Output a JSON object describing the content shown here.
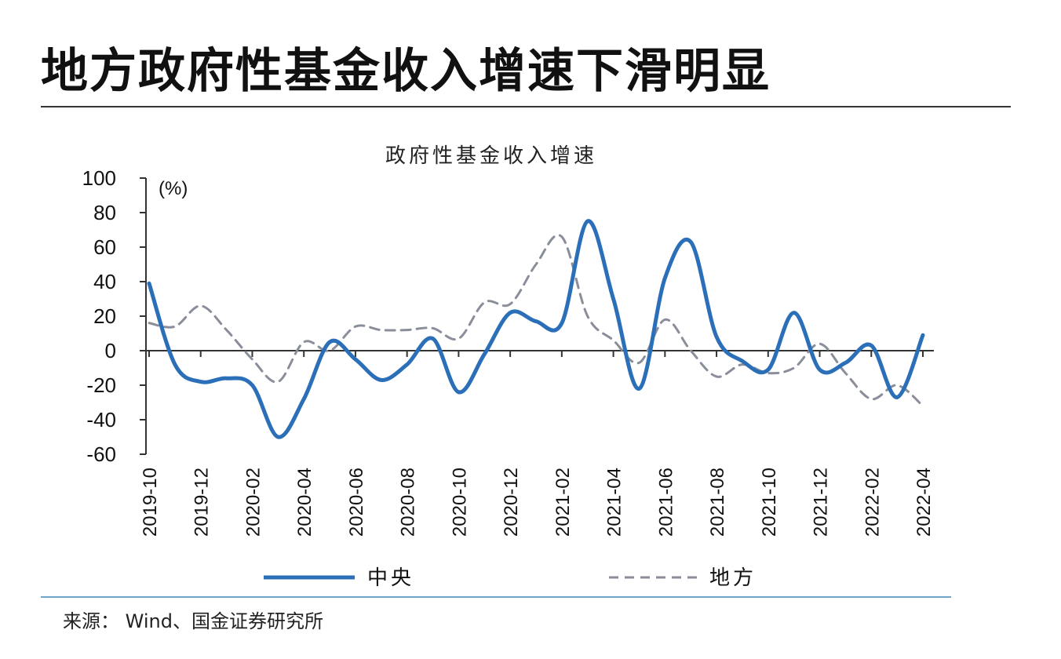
{
  "headline": "地方政府性基金收入增速下滑明显",
  "source": "来源： Wind、国金证券研究所",
  "chart_data": {
    "type": "line",
    "title": "政府性基金收入增速",
    "ylabel": "(%)",
    "xlabel": "",
    "ylim": [
      -60,
      100
    ],
    "yticks": [
      "100",
      "80",
      "60",
      "40",
      "20",
      "0",
      "-20",
      "-40",
      "-60"
    ],
    "categories": [
      "2019-10",
      "2019-11",
      "2019-12",
      "2020-01",
      "2020-02",
      "2020-03",
      "2020-04",
      "2020-05",
      "2020-06",
      "2020-07",
      "2020-08",
      "2020-09",
      "2020-10",
      "2020-11",
      "2020-12",
      "2021-01",
      "2021-02",
      "2021-03",
      "2021-04",
      "2021-05",
      "2021-06",
      "2021-07",
      "2021-08",
      "2021-09",
      "2021-10",
      "2021-11",
      "2021-12",
      "2022-01",
      "2022-02",
      "2022-03",
      "2022-04"
    ],
    "xtick_labels": [
      "2019-10",
      "2019-12",
      "2020-02",
      "2020-04",
      "2020-06",
      "2020-08",
      "2020-10",
      "2020-12",
      "2021-02",
      "2021-04",
      "2021-06",
      "2021-08",
      "2021-10",
      "2021-12",
      "2022-02",
      "2022-04"
    ],
    "grid": false,
    "legend": "bottom",
    "series": [
      {
        "name": "中央",
        "style": "solid",
        "color": "#2a6fb8",
        "values": [
          39,
          -8,
          -18,
          -16,
          -20,
          -50,
          -28,
          5,
          -5,
          -17,
          -8,
          7,
          -24,
          -2,
          22,
          17,
          16,
          75,
          30,
          -22,
          42,
          63,
          8,
          -6,
          -11,
          22,
          -11,
          -7,
          3,
          -27,
          9
        ]
      },
      {
        "name": "地方",
        "style": "dashed",
        "color": "#8a8e9a",
        "values": [
          16,
          14,
          26,
          12,
          -5,
          -18,
          5,
          0,
          14,
          12,
          12,
          13,
          7,
          28,
          27,
          50,
          66,
          20,
          6,
          -7,
          18,
          0,
          -15,
          -8,
          -13,
          -10,
          4,
          -13,
          -28,
          -20,
          -32
        ]
      }
    ]
  }
}
